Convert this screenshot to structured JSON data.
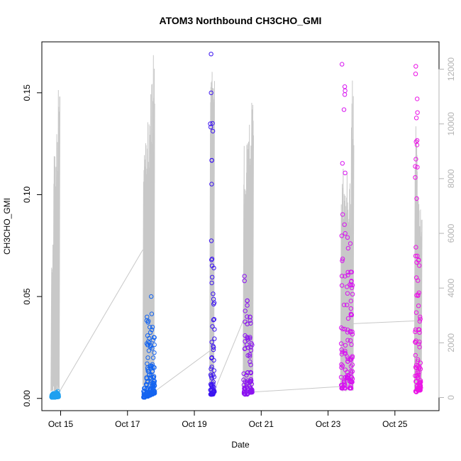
{
  "chart_data": {
    "type": "scatter",
    "title": "ATOM3 Northbound CH3CHO_GMI",
    "xlabel": "Date",
    "ylabel": "CH3CHO_GMI",
    "x_axis": {
      "type": "date",
      "range": [
        "2017-10-14T10:30",
        "2017-10-26T07:40"
      ],
      "ticks": [
        "2017-10-15",
        "2017-10-17",
        "2017-10-19",
        "2017-10-21",
        "2017-10-23",
        "2017-10-25"
      ],
      "tick_labels": [
        "Oct 15",
        "Oct 17",
        "Oct 19",
        "Oct 21",
        "Oct 23",
        "Oct 25"
      ]
    },
    "y_axis": {
      "range": [
        -0.006,
        0.175
      ],
      "ticks": [
        0.0,
        0.05,
        0.1,
        0.15
      ],
      "tick_labels": [
        "0.00",
        "0.05",
        "0.10",
        "0.15"
      ]
    },
    "y2_axis": {
      "range": [
        -480,
        13000
      ],
      "ticks": [
        0,
        2000,
        4000,
        6000,
        8000,
        10000,
        12000
      ],
      "tick_labels": [
        "0",
        "2000",
        "4000",
        "6000",
        "8000",
        "10000",
        "12000"
      ],
      "color": "#b3b3b3"
    },
    "grid": false,
    "series": [
      {
        "color": "#1ea0f0",
        "x": [
          "2017-10-14T18:00",
          "2017-10-14T19:00",
          "2017-10-14T20:00",
          "2017-10-14T21:00",
          "2017-10-14T22:00"
        ],
        "y_min": [
          0.0005,
          0.0005,
          0.0006,
          0.0007,
          0.0008
        ],
        "y_max": [
          0.002,
          0.0025,
          0.0022,
          0.003,
          0.0035
        ]
      },
      {
        "color": "#1464f0",
        "x": [
          "2017-10-17T12:00",
          "2017-10-17T14:00",
          "2017-10-17T15:00",
          "2017-10-17T16:00",
          "2017-10-17T17:00",
          "2017-10-17T18:00",
          "2017-10-17T19:00"
        ],
        "y_min": [
          0.0005,
          0.001,
          0.001,
          0.0015,
          0.002,
          0.002,
          0.0025
        ],
        "y_max": [
          0.005,
          0.04,
          0.038,
          0.035,
          0.05,
          0.035,
          0.03
        ]
      },
      {
        "color": "#3c14f0",
        "x": [
          "2017-10-19T12:00",
          "2017-10-19T13:00",
          "2017-10-19T14:00"
        ],
        "y_min": [
          0.002,
          0.002,
          0.003
        ],
        "y_max": [
          0.169,
          0.135,
          0.064
        ]
      },
      {
        "color": "#8c14f0",
        "x": [
          "2017-10-20T12:00",
          "2017-10-20T14:00",
          "2017-10-20T16:00",
          "2017-10-20T17:00"
        ],
        "y_min": [
          0.002,
          0.002,
          0.003,
          0.003
        ],
        "y_max": [
          0.06,
          0.048,
          0.04,
          0.027
        ]
      },
      {
        "color": "#d714f0",
        "x": [
          "2017-10-23T10:00",
          "2017-10-23T12:00",
          "2017-10-23T14:00",
          "2017-10-23T16:00",
          "2017-10-23T17:00"
        ],
        "y_min": [
          0.005,
          0.005,
          0.01,
          0.005,
          0.008
        ],
        "y_max": [
          0.164,
          0.153,
          0.079,
          0.076,
          0.062
        ]
      },
      {
        "color": "#eb14e6",
        "x": [
          "2017-10-25T15:00",
          "2017-10-25T16:00",
          "2017-10-25T17:00",
          "2017-10-25T18:00"
        ],
        "y_min": [
          0.003,
          0.004,
          0.004,
          0.004
        ],
        "y_max": [
          0.163,
          0.147,
          0.068,
          0.04
        ]
      }
    ],
    "secondary_line": {
      "color": "#c8c8c8",
      "segments": [
        {
          "x_start": "2017-10-14T17:00",
          "x_end": "2017-10-14T23:00",
          "y2_max": [
            5800,
            9900,
            10100,
            11600
          ]
        },
        {
          "x_start": "2017-10-17T11:00",
          "x_end": "2017-10-17T19:00",
          "y2_max": [
            9600,
            10100,
            10800,
            11500,
            12800
          ]
        },
        {
          "x_start": "2017-10-19T11:00",
          "x_end": "2017-10-19T14:00",
          "y2_max": [
            11700,
            12000,
            11800
          ]
        },
        {
          "x_start": "2017-10-20T11:00",
          "x_end": "2017-10-20T18:00",
          "y2_max": [
            9400,
            9700,
            10000,
            11000
          ]
        },
        {
          "x_start": "2017-10-23T09:00",
          "x_end": "2017-10-23T18:00",
          "y2_max": [
            8500,
            8300,
            8000,
            12100
          ]
        },
        {
          "x_start": "2017-10-25T14:00",
          "x_end": "2017-10-25T19:00",
          "y2_max": [
            10000,
            8000,
            7200
          ]
        }
      ],
      "connectors_y2": [
        [
          "2017-10-14T23:00",
          200,
          "2017-10-17T11:00",
          5400
        ],
        [
          "2017-10-17T19:00",
          200,
          "2017-10-19T11:00",
          1700
        ],
        [
          "2017-10-19T14:00",
          200,
          "2017-10-20T11:00",
          2800
        ],
        [
          "2017-10-20T18:00",
          200,
          "2017-10-23T09:00",
          400
        ],
        [
          "2017-10-23T18:00",
          2700,
          "2017-10-25T14:00",
          2800
        ]
      ]
    }
  }
}
